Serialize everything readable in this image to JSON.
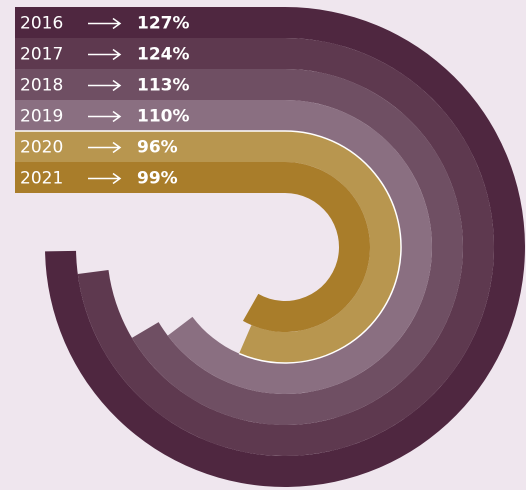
{
  "chart_data": {
    "type": "radial_bar",
    "categories": [
      "2016",
      "2017",
      "2018",
      "2019",
      "2020",
      "2021"
    ],
    "values": [
      127,
      124,
      113,
      110,
      96,
      99
    ],
    "value_labels": [
      "127%",
      "124%",
      "113%",
      "110%",
      "96%",
      "99%"
    ],
    "colors": [
      "#4f2740",
      "#5e394f",
      "#6f4f63",
      "#8a6f81",
      "#b8964f",
      "#a97d2a"
    ]
  }
}
